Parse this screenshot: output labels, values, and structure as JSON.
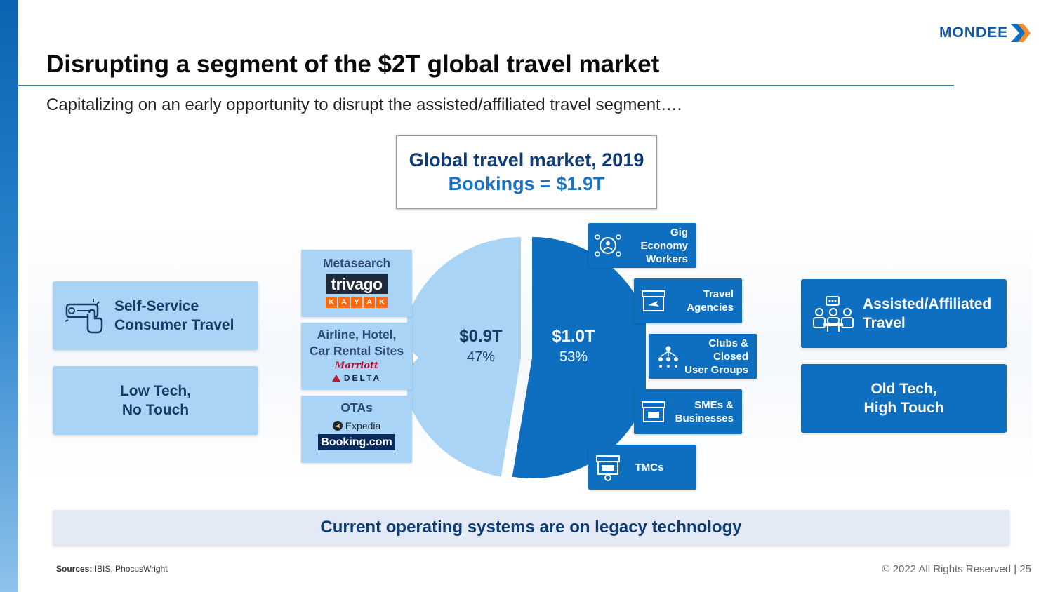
{
  "brand": {
    "name": "MONDEE",
    "accent": "#0e6fc0",
    "dark": "#0f3d73",
    "light": "#a9d4f5"
  },
  "title": "Disrupting a segment of the $2T global travel market",
  "subtitle": "Capitalizing on an early opportunity to disrupt the assisted/affiliated travel segment….",
  "market": {
    "line1": "Global travel market, 2019",
    "line2": "Bookings = $1.9T"
  },
  "left": {
    "self_service": "Self-Service Consumer Travel",
    "self_service_l1": "Self-Service",
    "self_service_l2": "Consumer Travel",
    "low_tech_l1": "Low Tech,",
    "low_tech_l2": "No Touch"
  },
  "right": {
    "assisted_l1": "Assisted/Affiliated",
    "assisted_l2": "Travel",
    "old_tech_l1": "Old Tech,",
    "old_tech_l2": "High Touch"
  },
  "segments": {
    "metasearch": {
      "title": "Metasearch",
      "logo1": "trivago",
      "logo2": [
        "K",
        "A",
        "Y",
        "A",
        "K"
      ]
    },
    "direct": {
      "title_l1": "Airline, Hotel,",
      "title_l2": "Car Rental Sites",
      "logo1": "Marriott",
      "logo2": "DELTA"
    },
    "otas": {
      "title": "OTAs",
      "logo1": "Expedia",
      "logo2": "Booking.com"
    }
  },
  "chart_data": {
    "type": "pie",
    "slices": [
      {
        "label": "$0.9T",
        "value": 0.9,
        "percent": "47%",
        "color": "#a9d4f5"
      },
      {
        "label": "$1.0T",
        "value": 1.0,
        "percent": "53%",
        "color": "#0e6fc0"
      }
    ],
    "total": 1.9
  },
  "assisted_segments": [
    {
      "key": "gig",
      "l1": "Gig Economy",
      "l2": "Workers",
      "icon": "gig-workers-icon"
    },
    {
      "key": "agencies",
      "l1": "Travel",
      "l2": "Agencies",
      "icon": "storefront-plane-icon"
    },
    {
      "key": "clubs",
      "l1": "Clubs & Closed",
      "l2": "User Groups",
      "icon": "group-network-icon"
    },
    {
      "key": "smes",
      "l1": "SMEs &",
      "l2": "Businesses",
      "icon": "storefront-sme-icon"
    },
    {
      "key": "tmcs",
      "l1": "TMCs",
      "l2": "",
      "icon": "storefront-247-icon"
    }
  ],
  "legacy": "Current operating systems are on legacy technology",
  "sources_label": "Sources:",
  "sources_text": "IBIS, PhocusWright",
  "footer": "© 2022 All Rights Reserved  |   25"
}
